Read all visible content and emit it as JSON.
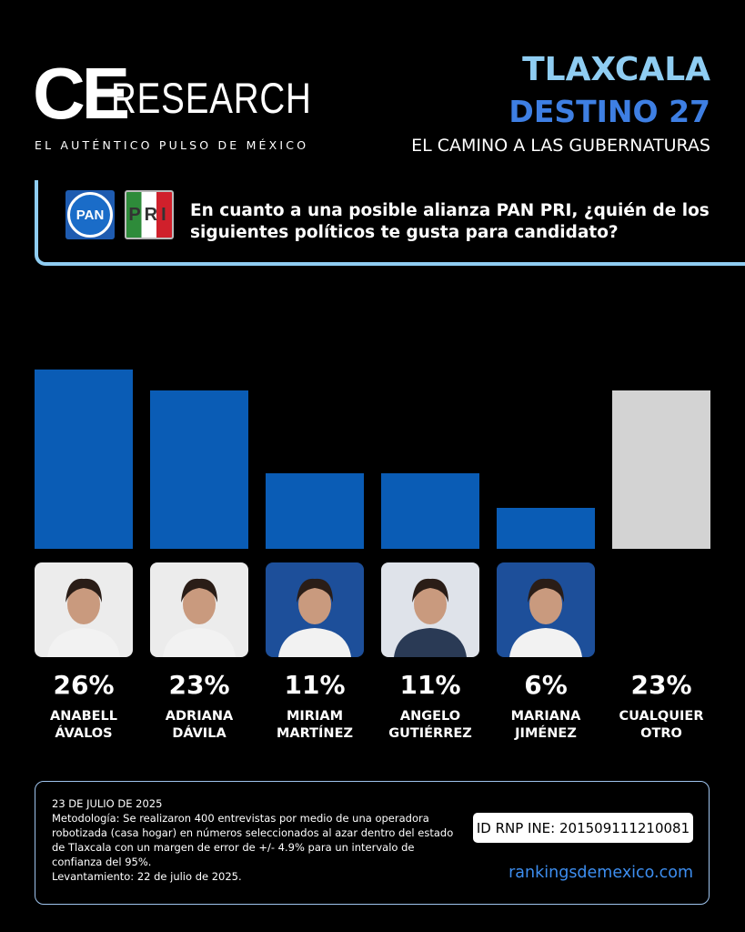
{
  "header": {
    "brand_big": "CE",
    "brand_small": "RESEARCH",
    "tagline": "EL AUTÉNTICO PULSO DE MÉXICO",
    "region": "TLAXCALA",
    "series_name": "DESTINO 27",
    "subtitle": "EL CAMINO A LAS GUBERNATURAS"
  },
  "question": {
    "logo_pan": "PAN",
    "logo_pri": "PRI",
    "text": "En cuanto a una posible alianza PAN PRI, ¿quién de los siguientes políticos te gusta para candidato?"
  },
  "chart_data": {
    "type": "bar",
    "categories": [
      "ANABELL ÁVALOS",
      "ADRIANA DÁVILA",
      "MIRIAM MARTÍNEZ",
      "ANGELO GUTIÉRREZ",
      "MARIANA JIMÉNEZ",
      "CUALQUIER OTRO"
    ],
    "values": [
      26,
      23,
      11,
      11,
      6,
      23
    ],
    "value_labels": [
      "26%",
      "23%",
      "11%",
      "11%",
      "6%",
      "23%"
    ],
    "colors": [
      "#0a5cb5",
      "#0a5cb5",
      "#0a5cb5",
      "#0a5cb5",
      "#0a5cb5",
      "#d3d3d3"
    ]
  },
  "footer": {
    "date": "23 DE JULIO DE 2025",
    "methodology": "Metodología: Se realizaron 400 entrevistas por medio de una operadora robotizada (casa hogar) en números seleccionados al azar dentro del estado de Tlaxcala con un margen de error de +/- 4.9% para un intervalo de confianza del 95%.",
    "fieldwork": "Levantamiento: 22 de julio de 2025.",
    "registry": "ID RNP INE: 201509111210081",
    "website": "rankingsdemexico.com"
  }
}
